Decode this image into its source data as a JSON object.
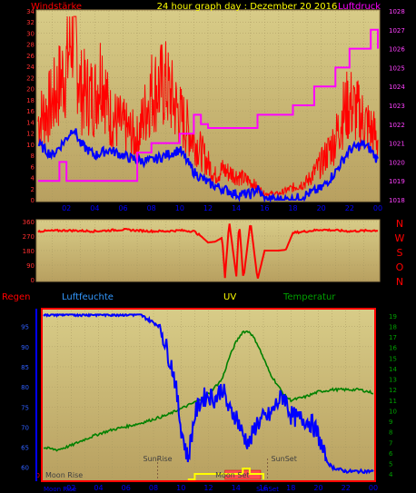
{
  "header": {
    "left_label": "Windstärke",
    "title": "24 hour graph day : Dezember 20 2016",
    "right_label": "Luftdruck"
  },
  "middle": {
    "compass_labels": [
      "N",
      "W",
      "S",
      "O",
      "N"
    ]
  },
  "bottom_header": {
    "rain_label": "Regen",
    "humidity_label": "Luftfeuchte",
    "uv_label": "UV",
    "temp_label": "Temperatur"
  },
  "colors": {
    "background": "#000000",
    "panel": "#c8b878",
    "wind": "#ff0000",
    "gust": "#0000ff",
    "pressure": "#ff00ff",
    "humidity": "#0000ff",
    "temperature": "#008000",
    "uv": "#ffff00",
    "label_yellow": "#ffff00",
    "label_red": "#ff0000",
    "label_blue": "#0000ff",
    "label_green": "#00a000"
  },
  "chart_data": [
    {
      "type": "line",
      "name": "wind",
      "x_ticks": [
        "02",
        "04",
        "06",
        "08",
        "10",
        "12",
        "14",
        "16",
        "18",
        "20",
        "22",
        "00"
      ],
      "left_ticks": [
        "0",
        "2",
        "4",
        "6",
        "8",
        "10",
        "12",
        "14",
        "16",
        "18",
        "20",
        "22",
        "24",
        "26",
        "28",
        "30",
        "32",
        "34"
      ],
      "right_ticks": [
        "1018",
        "1019",
        "1020",
        "1021",
        "1022",
        "1023",
        "1024",
        "1025",
        "1026",
        "1027",
        "1028"
      ],
      "ylim_left": [
        0,
        34
      ],
      "ylim_right": [
        1018,
        1028
      ],
      "xlim_hours": [
        0,
        24
      ],
      "series": [
        {
          "name": "Windstärke",
          "x": [
            0,
            1,
            2,
            2.5,
            3,
            4,
            4.5,
            5,
            6,
            7,
            7.5,
            8,
            9,
            10,
            11,
            12,
            12.5,
            13,
            14,
            15,
            16,
            17,
            18,
            19,
            20,
            20.5,
            21,
            21.5,
            22,
            23,
            24
          ],
          "y": [
            13,
            16,
            22,
            30,
            18,
            17,
            22,
            14,
            12,
            10,
            14,
            18,
            19,
            14,
            10,
            6,
            4,
            5,
            4,
            3,
            1,
            1,
            2,
            3,
            6,
            8,
            10,
            14,
            16,
            13,
            10
          ]
        },
        {
          "name": "",
          "x": [
            0,
            1,
            2,
            2.5,
            3,
            4,
            5,
            6,
            7,
            8,
            9,
            10,
            11,
            12,
            13,
            14,
            15,
            15.5,
            16,
            17,
            18,
            19,
            20,
            21,
            22,
            23,
            23.5,
            24
          ],
          "y": [
            10,
            8,
            11,
            13,
            10,
            8,
            9,
            8,
            7,
            7,
            8,
            9,
            5,
            3,
            2,
            1,
            1,
            2,
            0,
            0,
            0,
            1,
            2,
            5,
            9,
            10,
            9,
            7
          ]
        },
        {
          "name": "Luftdruck",
          "axis": "right",
          "x": [
            0,
            1,
            1.5,
            2,
            6.5,
            7,
            8,
            9,
            10,
            11,
            11.5,
            12,
            14,
            15,
            15.5,
            16,
            17,
            18,
            19,
            19.5,
            20,
            21,
            21.5,
            22,
            23,
            23.5,
            24
          ],
          "y": [
            1019,
            1019,
            1020,
            1019,
            1019,
            1020.5,
            1021,
            1021,
            1021.5,
            1022.5,
            1022,
            1021.8,
            1021.8,
            1021.8,
            1022.5,
            1022.5,
            1022.5,
            1023,
            1023,
            1024,
            1024,
            1025,
            1025,
            1026,
            1026,
            1027,
            1026
          ]
        }
      ]
    },
    {
      "type": "line",
      "name": "direction",
      "left_ticks": [
        "0",
        "90",
        "180",
        "270",
        "360"
      ],
      "ylim": [
        0,
        360
      ],
      "series": [
        {
          "name": "",
          "x": [
            0,
            2,
            4,
            6,
            8,
            9,
            10,
            11,
            11.5,
            12,
            12.5,
            13,
            13.2,
            13.5,
            14,
            14.2,
            14.5,
            15,
            15.5,
            16,
            17,
            17.5,
            18,
            19,
            20,
            22,
            24
          ],
          "y": [
            300,
            305,
            300,
            310,
            300,
            300,
            305,
            300,
            270,
            230,
            235,
            260,
            10,
            360,
            20,
            360,
            0,
            360,
            0,
            180,
            180,
            185,
            290,
            300,
            310,
            300,
            305
          ]
        }
      ]
    },
    {
      "type": "line",
      "name": "humidity-temperature",
      "x_ticks": [
        "02",
        "04",
        "06",
        "08",
        "10",
        "12",
        "14",
        "16",
        "18",
        "20",
        "22",
        "00"
      ],
      "left_ticks": [
        "60",
        "65",
        "70",
        "75",
        "80",
        "85",
        "90",
        "95"
      ],
      "right_ticks": [
        "4",
        "5",
        "6",
        "7",
        "8",
        "9",
        "10",
        "11",
        "12",
        "13",
        "14",
        "15",
        "16",
        "17",
        "18",
        "19"
      ],
      "ylim_left": [
        57,
        99
      ],
      "ylim_right": [
        3.5,
        19.5
      ],
      "annotations": [
        "SunRise",
        "SunSet",
        "Moon Rise",
        "Moon Set",
        "0"
      ],
      "series": [
        {
          "name": "Luftfeuchte",
          "x": [
            0,
            7,
            7.5,
            8.5,
            9,
            9.5,
            10,
            10.5,
            11,
            11.5,
            12,
            12.5,
            13,
            13.5,
            14,
            14.5,
            15,
            15.5,
            16,
            16.5,
            17,
            17.5,
            18,
            18.5,
            19,
            19.5,
            20,
            20.5,
            21,
            22,
            23,
            24
          ],
          "y": [
            98,
            98,
            97,
            95,
            89,
            83,
            70,
            62,
            73,
            77,
            78,
            77,
            80,
            74,
            73,
            68,
            66,
            71,
            72,
            73,
            76,
            78,
            73,
            72,
            72,
            71,
            68,
            62,
            60,
            59,
            59,
            59
          ]
        },
        {
          "name": "Temperatur",
          "axis": "right",
          "x": [
            0,
            1,
            2,
            3,
            4,
            5,
            6,
            7,
            8,
            9,
            10,
            11,
            12,
            13,
            13.5,
            14,
            14.5,
            15,
            15.5,
            16,
            16.5,
            17,
            17.5,
            18,
            19,
            20,
            21,
            22,
            23,
            24
          ],
          "y": [
            6.5,
            6.3,
            6.7,
            7.3,
            7.8,
            8.2,
            8.5,
            8.8,
            9.2,
            9.6,
            10.2,
            10.8,
            11.6,
            13,
            15,
            16.5,
            17.5,
            17.5,
            16.5,
            15,
            13.5,
            12.5,
            11.5,
            11,
            11.3,
            11.8,
            12,
            12,
            12,
            11.7
          ]
        },
        {
          "name": "UV",
          "x": [
            10.5,
            11,
            11.5,
            12,
            13,
            14,
            14.5,
            15,
            16
          ],
          "y": [
            0,
            1,
            1,
            1,
            1,
            1,
            2,
            1,
            0
          ]
        }
      ]
    }
  ]
}
